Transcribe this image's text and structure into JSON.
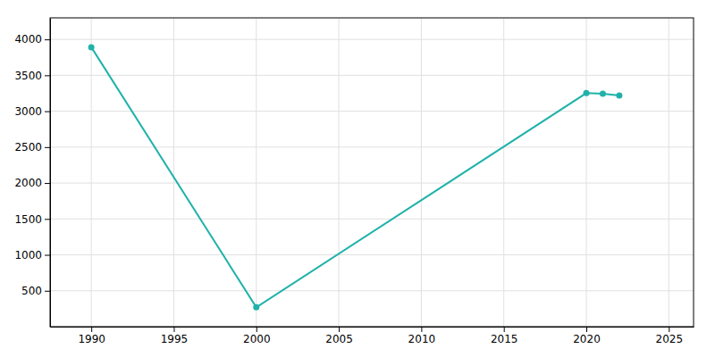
{
  "chart_data": {
    "type": "line",
    "x": [
      1990,
      2000,
      2020,
      2021,
      2022
    ],
    "values": [
      3891,
      270,
      3252,
      3243,
      3219
    ],
    "color": "#20B2AA",
    "marker": "o",
    "xlim": [
      1987.5,
      2026.5
    ],
    "ylim": [
      0,
      4300
    ],
    "xticks": [
      1990,
      1995,
      2000,
      2005,
      2010,
      2015,
      2020,
      2025
    ],
    "yticks": [
      500,
      1000,
      1500,
      2000,
      2500,
      3000,
      3500,
      4000
    ],
    "grid": true
  }
}
